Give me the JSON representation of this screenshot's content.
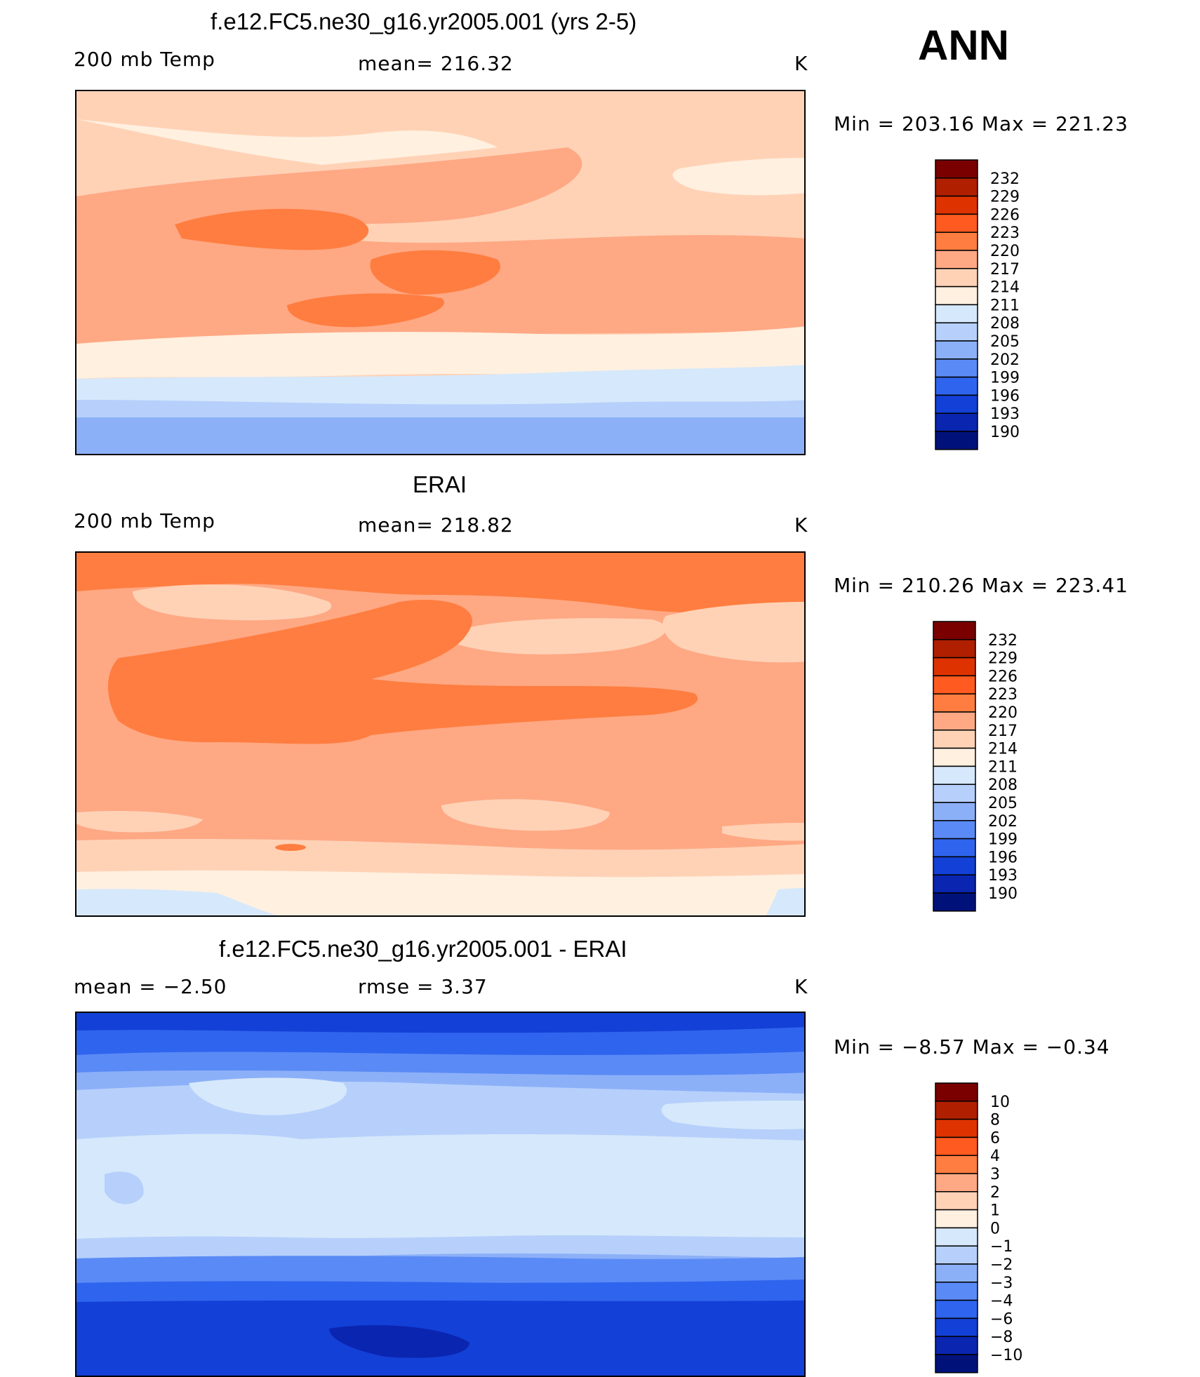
{
  "season": "ANN",
  "units": "K",
  "panels": [
    {
      "title": "f.e12.FC5.ne30_g16.yr2005.001 (yrs 2-5)",
      "left_label": "200 mb Temp",
      "center_label": "mean= 216.32",
      "right_label": "K",
      "minmax": "Min = 203.16 Max = 221.23"
    },
    {
      "title": "ERAI",
      "left_label": "200 mb Temp",
      "center_label": "mean= 218.82",
      "right_label": "K",
      "minmax": "Min = 210.26 Max = 223.41"
    },
    {
      "title": "f.e12.FC5.ne30_g16.yr2005.001 - ERAI",
      "left_label": "mean =   −2.50",
      "center_label": "rmse =    3.37",
      "right_label": "K",
      "minmax": "Min =  −8.57 Max =  −0.34"
    }
  ],
  "colorbars": [
    {
      "labels": [
        "232",
        "229",
        "226",
        "223",
        "220",
        "217",
        "214",
        "211",
        "208",
        "205",
        "202",
        "199",
        "196",
        "193",
        "190"
      ],
      "colors": [
        "#7a0000",
        "#b01f00",
        "#de3300",
        "#ff5a1f",
        "#ff7d40",
        "#ffa884",
        "#ffd2b6",
        "#fff0e0",
        "#d6e8fb",
        "#b6d0fb",
        "#8cb0f8",
        "#5a8af5",
        "#2f64ee",
        "#1340d6",
        "#0a25b0",
        "#00127a"
      ]
    },
    {
      "labels": [
        "232",
        "229",
        "226",
        "223",
        "220",
        "217",
        "214",
        "211",
        "208",
        "205",
        "202",
        "199",
        "196",
        "193",
        "190"
      ],
      "colors": [
        "#7a0000",
        "#b01f00",
        "#de3300",
        "#ff5a1f",
        "#ff7d40",
        "#ffa884",
        "#ffd2b6",
        "#fff0e0",
        "#d6e8fb",
        "#b6d0fb",
        "#8cb0f8",
        "#5a8af5",
        "#2f64ee",
        "#1340d6",
        "#0a25b0",
        "#00127a"
      ]
    },
    {
      "labels": [
        "10",
        "8",
        "6",
        "4",
        "3",
        "2",
        "1",
        "0",
        "−1",
        "−2",
        "−3",
        "−4",
        "−6",
        "−8",
        "−10"
      ],
      "colors": [
        "#7a0000",
        "#b01f00",
        "#de3300",
        "#ff5a1f",
        "#ff7d40",
        "#ffa884",
        "#ffd2b6",
        "#fff0e0",
        "#d6e8fb",
        "#b6d0fb",
        "#8cb0f8",
        "#5a8af5",
        "#2f64ee",
        "#1340d6",
        "#0a25b0",
        "#00127a"
      ]
    }
  ],
  "chart_data": [
    {
      "type": "heatmap",
      "title": "f.e12.FC5.ne30_g16.yr2005.001 (yrs 2-5)",
      "variable": "200 mb Temp",
      "units": "K",
      "mean": 216.32,
      "min": 203.16,
      "max": 221.23,
      "contour_levels": [
        190,
        193,
        196,
        199,
        202,
        205,
        208,
        211,
        214,
        217,
        220,
        223,
        226,
        229,
        232
      ],
      "lon_range": [
        0,
        360
      ],
      "lat_range": [
        -90,
        90
      ]
    },
    {
      "type": "heatmap",
      "title": "ERAI",
      "variable": "200 mb Temp",
      "units": "K",
      "mean": 218.82,
      "min": 210.26,
      "max": 223.41,
      "contour_levels": [
        190,
        193,
        196,
        199,
        202,
        205,
        208,
        211,
        214,
        217,
        220,
        223,
        226,
        229,
        232
      ],
      "lon_range": [
        0,
        360
      ],
      "lat_range": [
        -90,
        90
      ]
    },
    {
      "type": "heatmap",
      "title": "f.e12.FC5.ne30_g16.yr2005.001 - ERAI",
      "units": "K",
      "mean": -2.5,
      "rmse": 3.37,
      "min": -8.57,
      "max": -0.34,
      "contour_levels": [
        -10,
        -8,
        -6,
        -4,
        -3,
        -2,
        -1,
        0,
        1,
        2,
        3,
        4,
        6,
        8,
        10
      ],
      "lon_range": [
        0,
        360
      ],
      "lat_range": [
        -90,
        90
      ]
    }
  ]
}
